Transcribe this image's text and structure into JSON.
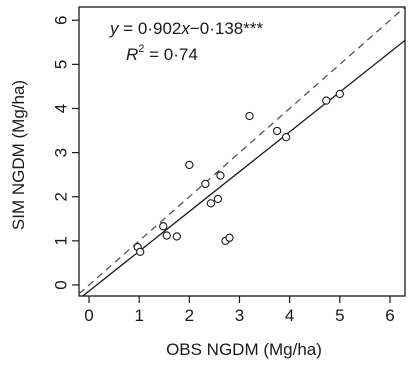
{
  "chart_data": {
    "type": "scatter",
    "xlabel": "OBS NGDM (Mg/ha)",
    "ylabel": "SIM NGDM (Mg/ha)",
    "xlim": [
      -0.2,
      6.3
    ],
    "ylim": [
      -0.25,
      6.3
    ],
    "x_ticks": [
      "0",
      "1",
      "2",
      "3",
      "4",
      "5",
      "6"
    ],
    "y_ticks": [
      "0",
      "1",
      "2",
      "3",
      "4",
      "5",
      "6"
    ],
    "grid": false,
    "legend": "none",
    "annotations": {
      "equation_y": "y",
      "equation_eq": " = 0·902",
      "equation_x": "x",
      "equation_tail": "−0·138***",
      "r2_r": "R",
      "r2_sup": "2",
      "r2_tail": " = 0·74"
    },
    "series": [
      {
        "marker": "open-circle",
        "points": [
          {
            "x": 0.97,
            "y": 0.86
          },
          {
            "x": 1.02,
            "y": 0.75
          },
          {
            "x": 1.48,
            "y": 1.33
          },
          {
            "x": 1.55,
            "y": 1.12
          },
          {
            "x": 1.75,
            "y": 1.1
          },
          {
            "x": 2.0,
            "y": 2.72
          },
          {
            "x": 2.32,
            "y": 2.29
          },
          {
            "x": 2.43,
            "y": 1.85
          },
          {
            "x": 2.57,
            "y": 1.95
          },
          {
            "x": 2.62,
            "y": 2.48
          },
          {
            "x": 2.72,
            "y": 1.0
          },
          {
            "x": 2.8,
            "y": 1.07
          },
          {
            "x": 3.2,
            "y": 3.83
          },
          {
            "x": 3.75,
            "y": 3.49
          },
          {
            "x": 3.93,
            "y": 3.35
          },
          {
            "x": 4.73,
            "y": 4.18
          },
          {
            "x": 5.0,
            "y": 4.33
          }
        ]
      }
    ],
    "lines": [
      {
        "style": "dashed",
        "slope": 1,
        "intercept": 0
      },
      {
        "style": "solid",
        "slope": 0.902,
        "intercept": -0.138
      }
    ],
    "colors": {
      "ink": "#1a1a1a",
      "dashed": "#555555",
      "background": "#ffffff"
    }
  }
}
